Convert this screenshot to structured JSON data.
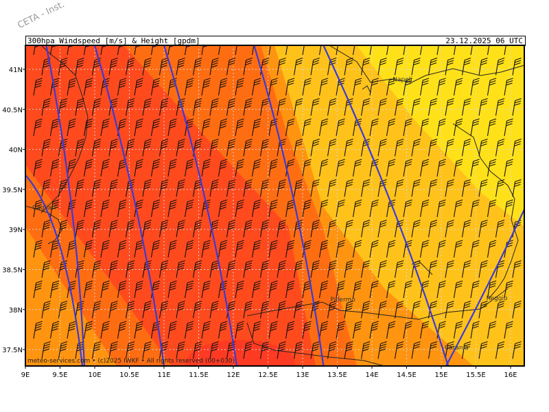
{
  "watermark": "CETA - Inst.",
  "header": {
    "title": "300hpa_Windspeed_[m/s]_&_Height_[gpdm]",
    "datetime": "23.12.2025_06_UTC"
  },
  "footer": "meteo-services.com • (c)2025 IWKF • All rights reserved (00+030)",
  "axes": {
    "lon_labels": [
      "9E",
      "9.5E",
      "10E",
      "10.5E",
      "11E",
      "11.5E",
      "12E",
      "12.5E",
      "13E",
      "13.5E",
      "14E",
      "14.5E",
      "15E",
      "15.5E",
      "16E"
    ],
    "lat_labels": [
      "41N",
      "40.5N",
      "40N",
      "39.5N",
      "39N",
      "38.5N",
      "38N",
      "37.5N"
    ]
  },
  "cities": [
    {
      "name": "Napoli",
      "lon": 14.3,
      "lat": 40.85
    },
    {
      "name": "Cagliari",
      "lon": 9.1,
      "lat": 39.25
    },
    {
      "name": "Palermo",
      "lon": 13.4,
      "lat": 38.1
    },
    {
      "name": "Reggio",
      "lon": 15.65,
      "lat": 38.12
    },
    {
      "name": "Catania",
      "lon": 15.05,
      "lat": 37.5
    }
  ],
  "colors": {
    "background": "#ffffff",
    "level1": "#ff4a1e",
    "level2": "#ff6d12",
    "level3": "#ff9410",
    "level4": "#ffc21a",
    "level5": "#ffe11a",
    "contour": "#3a3ad8",
    "grid": "#d8d8d8"
  },
  "contour_lines": [
    {
      "lon_top": 9.3,
      "lon_bottom": 9.85
    },
    {
      "lon_top": 10.0,
      "lon_bottom": 11.0
    },
    {
      "lon_top": 11.0,
      "lon_bottom": 12.05
    },
    {
      "lon_top": 12.3,
      "lon_bottom": 13.3
    },
    {
      "lon_top": 13.3,
      "lon_bottom": 15.1
    }
  ]
}
